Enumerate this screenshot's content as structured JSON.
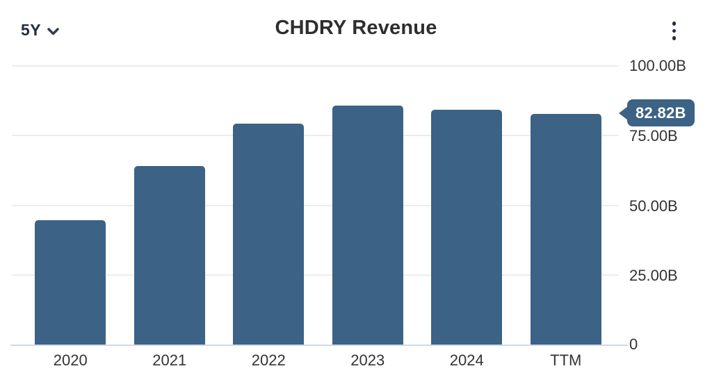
{
  "header": {
    "range_selector_label": "5Y",
    "title": "CHDRY Revenue"
  },
  "colors": {
    "bar": "#3c6286",
    "badge_bg": "#3c6286",
    "badge_text": "#ffffff",
    "gridline": "#ececec",
    "axis_line": "#cdd8eb",
    "title_text": "#2e2e2e",
    "axis_text": "#333333",
    "header_controls": "#232d3f"
  },
  "chart_data": {
    "type": "bar",
    "title": "CHDRY Revenue",
    "categories": [
      "2020",
      "2021",
      "2022",
      "2023",
      "2024",
      "TTM"
    ],
    "values": [
      44.7,
      64.2,
      79.2,
      85.9,
      84.3,
      82.82
    ],
    "value_suffix": "B",
    "ylim": [
      0,
      100
    ],
    "ytick_labels": [
      "100.00B",
      "75.00B",
      "50.00B",
      "25.00B",
      "0"
    ],
    "ytick_side": "right",
    "grid": "horizontal",
    "legend": "none",
    "annotation": {
      "label": "82.82B",
      "target_category": "TTM",
      "position": "right-of-plot callout pointing left at TTM bar top"
    }
  }
}
